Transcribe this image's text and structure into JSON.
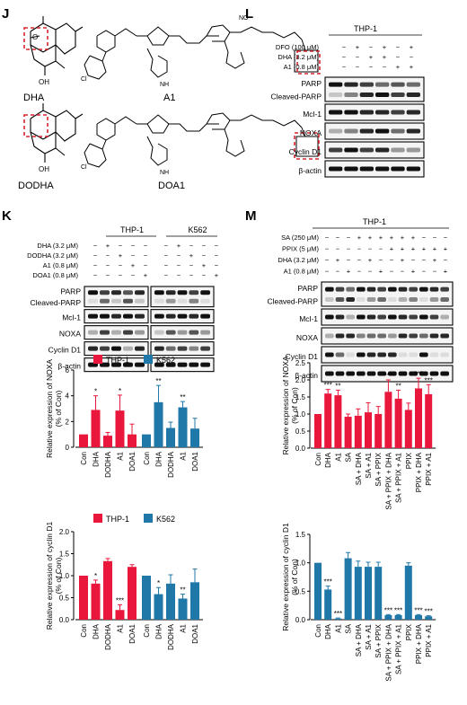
{
  "panels": {
    "J": {
      "letter": "J",
      "compounds": [
        "DHA",
        "A1",
        "DODHA",
        "DOA1"
      ],
      "atom_labels": {
        "oh": "OH",
        "nh": "NH",
        "no2": "NO",
        "two": "2",
        "cl": "Cl",
        "n": "N",
        "o": "O",
        "h": "H"
      }
    },
    "L": {
      "letter": "L",
      "cell_line": "THP-1",
      "treatments": [
        {
          "label": "DFO (100 μM)",
          "marks": [
            "−",
            "+",
            "−",
            "+",
            "−",
            "+"
          ]
        },
        {
          "label": "DHA (3.2 μM)",
          "marks": [
            "−",
            "−",
            "+",
            "+",
            "−",
            "−"
          ]
        },
        {
          "label": "A1 (0.8 μM)",
          "marks": [
            "−",
            "−",
            "−",
            "−",
            "+",
            "+"
          ]
        }
      ],
      "blots": [
        "PARP",
        "Cleaved-PARP",
        "Mcl-1",
        "NOXA",
        "Cyclin D1",
        "β-actin"
      ]
    },
    "K": {
      "letter": "K",
      "cell_lines": [
        "THP-1",
        "K562"
      ],
      "treatments": [
        {
          "label": "DHA (3.2 μM)",
          "marks": [
            "−",
            "+",
            "−",
            "−",
            "−",
            "−",
            "+",
            "−",
            "−",
            "−"
          ]
        },
        {
          "label": "DODHA (3.2 μM)",
          "marks": [
            "−",
            "−",
            "+",
            "−",
            "−",
            "−",
            "−",
            "+",
            "−",
            "−"
          ]
        },
        {
          "label": "A1 (0.8 μM)",
          "marks": [
            "−",
            "−",
            "−",
            "+",
            "−",
            "−",
            "−",
            "−",
            "+",
            "−"
          ]
        },
        {
          "label": "DOA1 (0.8 μM)",
          "marks": [
            "−",
            "−",
            "−",
            "−",
            "+",
            "−",
            "−",
            "−",
            "−",
            "+"
          ]
        }
      ],
      "blots": [
        "PARP",
        "Cleaved-PARP",
        "Mcl-1",
        "NOXA",
        "Cyclin D1",
        "β-actin"
      ]
    },
    "M": {
      "letter": "M",
      "cell_line": "THP-1",
      "treatments": [
        {
          "label": "SA (250 μM)",
          "marks": [
            "−",
            "−",
            "−",
            "+",
            "+",
            "+",
            "+",
            "+",
            "+",
            "−",
            "−",
            "−"
          ]
        },
        {
          "label": "PPIX (5 μM)",
          "marks": [
            "−",
            "−",
            "−",
            "−",
            "−",
            "−",
            "+",
            "+",
            "+",
            "+",
            "+",
            "+"
          ]
        },
        {
          "label": "DHA (3.2 μM)",
          "marks": [
            "−",
            "+",
            "−",
            "−",
            "+",
            "−",
            "−",
            "+",
            "−",
            "−",
            "+",
            "−"
          ]
        },
        {
          "label": "A1 (0.8 μM)",
          "marks": [
            "−",
            "−",
            "+",
            "−",
            "−",
            "+",
            "−",
            "−",
            "+",
            "−",
            "−",
            "+"
          ]
        }
      ],
      "blots": [
        "PARP",
        "Cleaved-PARP",
        "Mcl-1",
        "NOXA",
        "Cyclin D1",
        "β-actin"
      ]
    }
  },
  "colors": {
    "thp1": "#e8173b",
    "k562": "#1f78a8",
    "m_bar": "#e8173b",
    "m_bar2": "#1f78a8",
    "box": "#d6262f"
  },
  "chart_data": [
    {
      "id": "K-noxa",
      "type": "bar",
      "ylabel": "Relative expression of NOXA\n(% of Con)",
      "ylim": [
        0,
        6
      ],
      "yticks": [
        0,
        2,
        4,
        6
      ],
      "legend": [
        "THP-1",
        "K562"
      ],
      "legend_placement": "top",
      "groups": [
        {
          "name": "THP-1",
          "categories": [
            "Con",
            "DHA",
            "DODHA",
            "A1",
            "DOA1"
          ],
          "values": [
            1.0,
            2.9,
            0.9,
            2.85,
            1.0
          ],
          "errors": [
            0,
            1.1,
            0.25,
            1.2,
            0.8
          ],
          "stars": [
            "",
            "*",
            "",
            "*",
            ""
          ]
        },
        {
          "name": "K562",
          "categories": [
            "Con",
            "DHA",
            "DODHA",
            "A1",
            "DOA1"
          ],
          "values": [
            1.0,
            3.5,
            1.5,
            3.1,
            1.45
          ],
          "errors": [
            0,
            1.3,
            0.45,
            0.45,
            0.8
          ],
          "stars": [
            "",
            "**",
            "",
            "**",
            ""
          ]
        }
      ]
    },
    {
      "id": "K-cyclin",
      "type": "bar",
      "ylabel": "Relative expression of cyclin D1\n(% of Con)",
      "ylim": [
        0,
        2.0
      ],
      "yticks": [
        0,
        0.5,
        1.0,
        1.5,
        2.0
      ],
      "legend": [
        "THP-1",
        "K562"
      ],
      "legend_placement": "top",
      "groups": [
        {
          "name": "THP-1",
          "categories": [
            "Con",
            "DHA",
            "DODHA",
            "A1",
            "DOA1"
          ],
          "values": [
            1.0,
            0.82,
            1.33,
            0.22,
            1.2
          ],
          "errors": [
            0,
            0.08,
            0.06,
            0.12,
            0.05
          ],
          "stars": [
            "",
            "*",
            "",
            "***",
            ""
          ]
        },
        {
          "name": "K562",
          "categories": [
            "Con",
            "DHA",
            "DODHA",
            "A1",
            "DOA1"
          ],
          "values": [
            1.0,
            0.58,
            0.82,
            0.48,
            0.85
          ],
          "errors": [
            0,
            0.15,
            0.2,
            0.1,
            0.3
          ],
          "stars": [
            "",
            "*",
            "",
            "**",
            ""
          ]
        }
      ]
    },
    {
      "id": "M-noxa",
      "type": "bar",
      "ylabel": "Relative expression of NOXA\n(% of Con)",
      "ylim": [
        0,
        2.5
      ],
      "yticks": [
        0,
        0.5,
        1.0,
        1.5,
        2.0,
        2.5
      ],
      "categories": [
        "Con",
        "DHA",
        "A1",
        "SA",
        "SA + DHA",
        "SA + A1",
        "SA + PPIX",
        "SA + PPIX + DHA",
        "SA + PPIX + A1",
        "PPIX",
        "PPIX + DHA",
        "PPIX + A1"
      ],
      "values": [
        1.0,
        1.6,
        1.55,
        0.92,
        0.95,
        1.05,
        1.0,
        1.65,
        1.45,
        1.12,
        1.75,
        1.58
      ],
      "errors": [
        0,
        0.12,
        0.15,
        0.08,
        0.2,
        0.28,
        0.22,
        0.35,
        0.25,
        0.2,
        0.3,
        0.28
      ],
      "stars": [
        "",
        "***",
        "**",
        "",
        "",
        "",
        "",
        "***",
        "**",
        "",
        "***",
        "***"
      ]
    },
    {
      "id": "M-cyclin",
      "type": "bar",
      "ylabel": "Relative expression of cyclin D1\n(% of Con)",
      "ylim": [
        0,
        1.5
      ],
      "yticks": [
        0,
        0.5,
        1.0,
        1.5
      ],
      "categories": [
        "Con",
        "DHA",
        "A1",
        "SA",
        "SA + DHA",
        "SA + A1",
        "SA + PPIX",
        "SA + PPIX + DHA",
        "SA + PPIX + A1",
        "PPIX",
        "PPIX + DHA",
        "PPIX + A1"
      ],
      "values": [
        1.0,
        0.53,
        0.02,
        1.08,
        0.93,
        0.93,
        0.93,
        0.08,
        0.08,
        0.95,
        0.08,
        0.06
      ],
      "errors": [
        0,
        0.06,
        0.01,
        0.1,
        0.1,
        0.08,
        0.08,
        0.01,
        0.01,
        0.05,
        0.01,
        0.01
      ],
      "stars": [
        "",
        "***",
        "***",
        "",
        "",
        "",
        "",
        "***",
        "***",
        "",
        "***",
        "***"
      ]
    }
  ]
}
